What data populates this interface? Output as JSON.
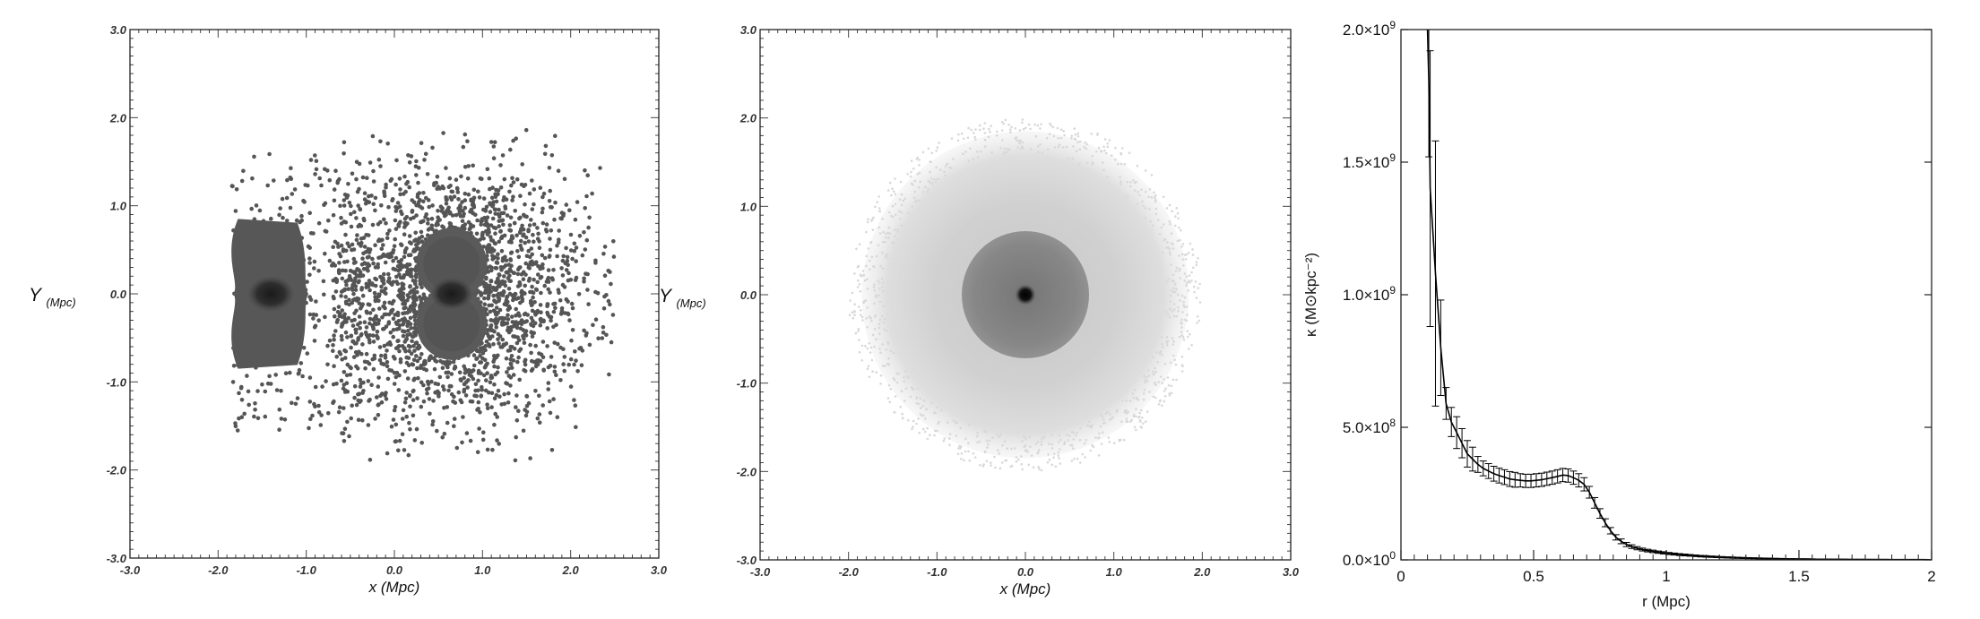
{
  "chart_data": [
    {
      "type": "scatter",
      "xlabel": "x (Mpc)",
      "ylabel": "Y (Mpc)",
      "xlim": [
        -3.0,
        3.0
      ],
      "ylim": [
        -3.0,
        3.0
      ],
      "x_ticks": [
        "-3.0",
        "-2.0",
        "-1.0",
        "0.0",
        "1.0",
        "2.0",
        "3.0"
      ],
      "y_ticks": [
        "-3.0",
        "-2.0",
        "-1.0",
        "0.0",
        "1.0",
        "2.0",
        "3.0"
      ],
      "marker_color": "#555555",
      "clusters": [
        {
          "center": [
            -1.4,
            0.0
          ],
          "core_halfwidth": 0.5,
          "core_halfheight": 0.85
        },
        {
          "center": [
            0.65,
            0.0
          ],
          "core_halfwidth": 0.4,
          "core_halfheight": 0.75,
          "sparse_extent_x": [
            -0.7,
            2.5
          ],
          "sparse_extent_y": [
            -1.9,
            1.9
          ]
        }
      ]
    },
    {
      "type": "heatmap",
      "xlabel": "x (Mpc)",
      "ylabel": "Y (Mpc)",
      "xlim": [
        -3.0,
        3.0
      ],
      "ylim": [
        -3.0,
        3.0
      ],
      "x_ticks": [
        "-3.0",
        "-2.0",
        "-1.0",
        "0.0",
        "1.0",
        "2.0",
        "3.0"
      ],
      "y_ticks": [
        "-3.0",
        "-2.0",
        "-1.0",
        "0.0",
        "1.0",
        "2.0",
        "3.0"
      ],
      "outer_halo_radius": 1.85,
      "inner_disk_radius": 0.72,
      "colors": {
        "outer": "#cccccc",
        "inner": "#858585",
        "core": "#000000"
      }
    },
    {
      "type": "line",
      "xlabel": "r (Mpc)",
      "ylabel": "κ (M⊙kpc⁻²)",
      "xlim": [
        0,
        2
      ],
      "ylim": [
        0,
        2000000000
      ],
      "x_ticks": [
        {
          "value": 0,
          "label": "0"
        },
        {
          "value": 0.5,
          "label": "0.5"
        },
        {
          "value": 1,
          "label": "1"
        },
        {
          "value": 1.5,
          "label": "1.5"
        },
        {
          "value": 2,
          "label": "2"
        }
      ],
      "y_ticks": [
        {
          "value": 0,
          "mantissa": "0.0×10",
          "exp": "0"
        },
        {
          "value": 500000000,
          "mantissa": "5.0×10",
          "exp": "8"
        },
        {
          "value": 1000000000,
          "mantissa": "1.0×10",
          "exp": "9"
        },
        {
          "value": 1500000000,
          "mantissa": "1.5×10",
          "exp": "9"
        },
        {
          "value": 2000000000,
          "mantissa": "2.0×10",
          "exp": "9"
        }
      ],
      "series": [
        {
          "x": [
            0.1,
            0.105,
            0.11,
            0.13,
            0.15,
            0.17,
            0.19,
            0.21,
            0.23,
            0.25,
            0.27,
            0.29,
            0.31,
            0.33,
            0.35,
            0.37,
            0.39,
            0.41,
            0.43,
            0.45,
            0.47,
            0.49,
            0.51,
            0.53,
            0.55,
            0.57,
            0.59,
            0.61,
            0.63,
            0.65,
            0.67,
            0.69,
            0.71,
            0.73,
            0.75,
            0.77,
            0.79,
            0.81,
            0.83,
            0.85,
            0.87,
            0.89,
            0.91,
            0.93,
            0.95,
            0.97,
            0.99,
            1.01,
            1.03,
            1.05,
            1.07,
            1.09,
            1.11,
            1.13,
            1.15,
            1.17,
            1.19,
            1.21,
            1.23,
            1.25,
            1.27,
            1.29,
            1.31,
            1.33,
            1.35,
            1.37,
            1.39,
            1.41,
            1.43,
            1.45,
            1.47,
            1.49,
            1.51,
            1.53,
            1.55,
            1.57,
            1.59,
            1.61,
            1.63,
            1.65,
            1.67,
            1.69,
            1.71,
            1.73,
            1.75,
            1.77,
            1.79,
            1.81,
            1.83,
            1.85,
            1.87,
            1.89,
            1.91,
            1.93,
            1.95,
            1.97,
            1.99
          ],
          "y": [
            2000000000,
            1800000000,
            1400000000,
            1080000000,
            800000000,
            590000000,
            520000000,
            480000000,
            440000000,
            400000000,
            380000000,
            360000000,
            345000000,
            335000000,
            325000000,
            318000000,
            312000000,
            305000000,
            302000000,
            300000000,
            298000000,
            298000000,
            300000000,
            302000000,
            306000000,
            310000000,
            315000000,
            320000000,
            318000000,
            310000000,
            300000000,
            285000000,
            255000000,
            215000000,
            175000000,
            140000000,
            110000000,
            85000000,
            70000000,
            58000000,
            50000000,
            44000000,
            39000000,
            35000000,
            32000000,
            29000000,
            26500000,
            24000000,
            22000000,
            20000000,
            18500000,
            17000000,
            15500000,
            14000000,
            13000000,
            12000000,
            11000000,
            10000000,
            9200000,
            8500000,
            7800000,
            7200000,
            6600000,
            6100000,
            5600000,
            5200000,
            4800000,
            4400000,
            4100000,
            3800000,
            3500000,
            3300000,
            3100000,
            2900000,
            2700000,
            2500000,
            2300000,
            2200000,
            2100000,
            2000000,
            1900000,
            1800000,
            1700000,
            1600000,
            1500000,
            1400000,
            1300000,
            1250000,
            1200000,
            1150000,
            1100000,
            1050000,
            1000000,
            950000,
            900000,
            850000,
            800000
          ],
          "err": [
            0,
            280000000,
            520000000,
            500000000,
            180000000,
            60000000,
            55000000,
            60000000,
            55000000,
            50000000,
            45000000,
            30000000,
            28000000,
            28000000,
            28000000,
            28000000,
            28000000,
            28000000,
            28000000,
            25000000,
            25000000,
            25000000,
            25000000,
            25000000,
            25000000,
            25000000,
            25000000,
            25000000,
            25000000,
            25000000,
            25000000,
            25000000,
            22000000,
            20000000,
            18000000,
            15000000,
            12000000,
            10000000,
            9000000,
            8000000,
            7000000,
            6000000,
            5500000,
            5000000,
            4800000,
            4500000,
            4200000,
            4000000,
            3800000,
            3600000,
            3400000,
            3200000,
            3000000,
            2900000,
            2800000,
            2700000,
            2600000,
            2500000,
            2400000,
            2300000,
            2200000,
            2100000,
            2000000,
            1900000,
            1800000,
            1700000,
            1600000,
            1500000,
            1400000,
            1300000,
            1200000,
            1100000,
            1000000,
            950000,
            900000,
            850000,
            800000,
            750000,
            700000,
            650000,
            600000,
            550000,
            500000,
            480000,
            460000,
            440000,
            420000,
            400000,
            380000,
            360000,
            340000,
            320000,
            300000,
            280000,
            260000,
            240000,
            220000
          ],
          "color": "#000000"
        }
      ]
    }
  ]
}
